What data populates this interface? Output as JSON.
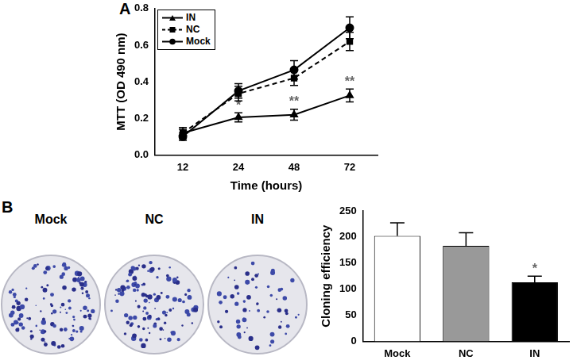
{
  "panels": [
    "A",
    "B"
  ],
  "plate_labels": [
    "Mock",
    "NC",
    "IN"
  ],
  "chart_data": [
    {
      "type": "line",
      "categories": [
        "12",
        "24",
        "48",
        "72"
      ],
      "x_label": "Time (hours)",
      "y_label": "MTT (OD 490 nm)",
      "ylim": [
        0,
        0.8
      ],
      "yticks": [
        {
          "value": 0,
          "label": "0.0"
        },
        0.2,
        0.4,
        0.6,
        0.8
      ],
      "grid": false,
      "legend": "upper left",
      "series": [
        {
          "name": "IN",
          "color": "#000000",
          "marker": "triangle",
          "line_style": "solid",
          "values": [
            0.12,
            0.205,
            0.22,
            0.325
          ],
          "errors": [
            0.02,
            0.025,
            0.03,
            0.035
          ],
          "significance": [
            null,
            "*",
            "**",
            "**"
          ]
        },
        {
          "name": "NC",
          "color": "#000000",
          "marker": "square",
          "line_style": "dashed",
          "values": [
            0.12,
            0.335,
            0.42,
            0.62
          ],
          "errors": [
            0.03,
            0.04,
            0.04,
            0.05
          ]
        },
        {
          "name": "Mock",
          "color": "#000000",
          "marker": "circle",
          "line_style": "solid",
          "values": [
            0.1,
            0.35,
            0.465,
            0.695
          ],
          "errors": [
            0.02,
            0.04,
            0.05,
            0.06
          ]
        }
      ]
    },
    {
      "type": "bar",
      "categories": [
        "Mock",
        "NC",
        "IN"
      ],
      "y_label": "Cloning efficiency",
      "values": [
        202,
        183,
        113
      ],
      "errors": [
        25,
        25,
        12
      ],
      "significance": [
        null,
        null,
        "*"
      ],
      "colors": [
        "#ffffff",
        "#999999",
        "#000000"
      ],
      "ylim": [
        0,
        250
      ],
      "yticks": [
        0,
        50,
        100,
        150,
        200,
        250
      ],
      "grid": false
    }
  ]
}
